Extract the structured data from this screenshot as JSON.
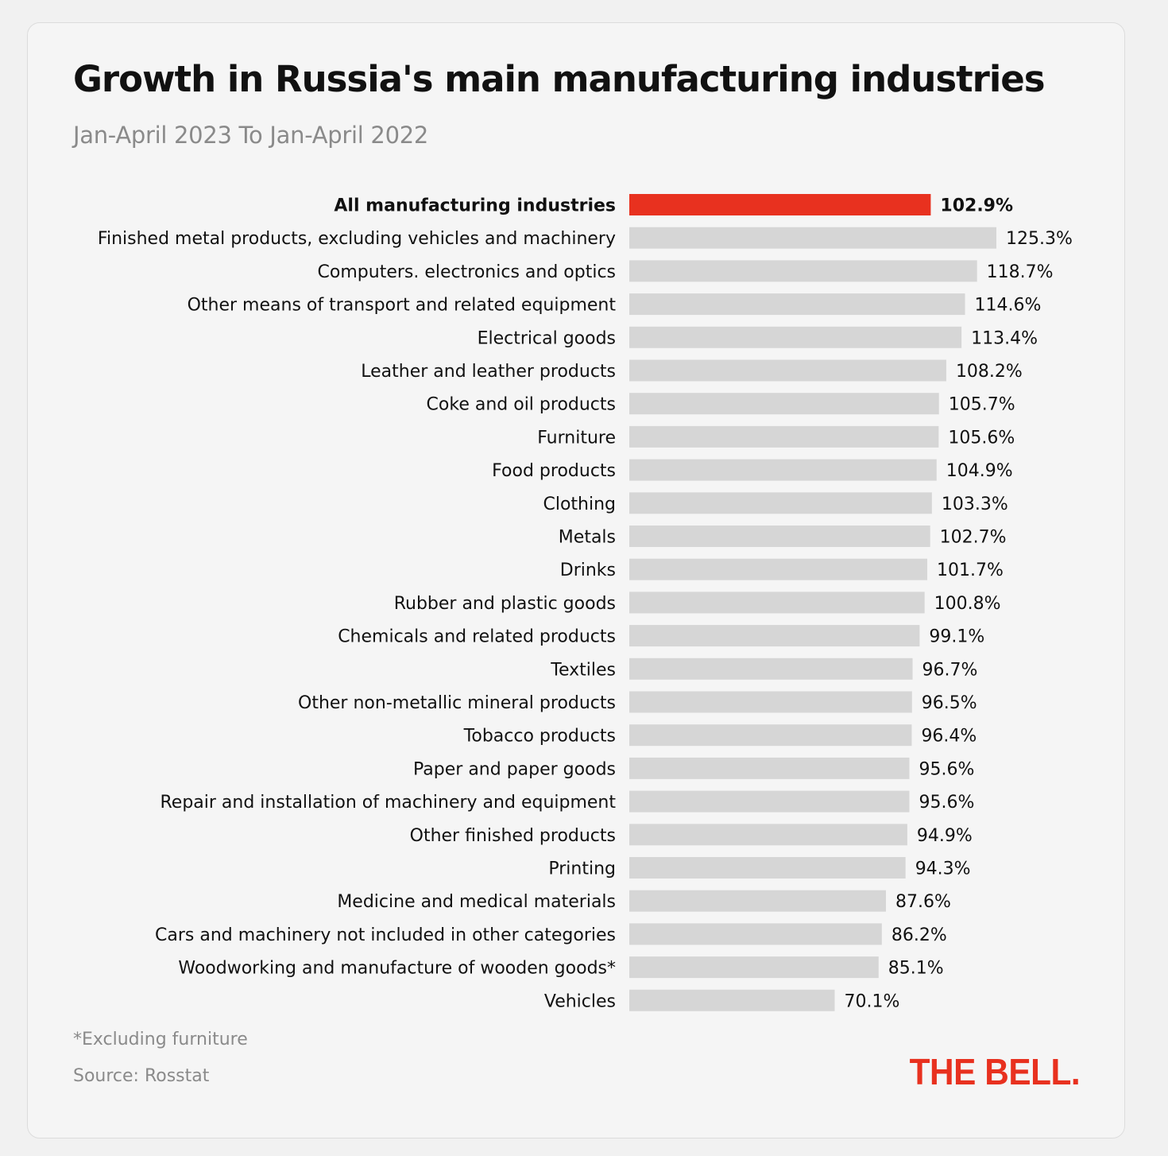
{
  "colors": {
    "highlight": "#e8311f",
    "bar": "#d6d6d6",
    "label": "#111111"
  },
  "chart_data": {
    "type": "bar",
    "orientation": "horizontal",
    "title": "Growth in Russia's main manufacturing industries",
    "subtitle": "Jan-April 2023 To Jan-April 2022",
    "unit": "%",
    "highlight_index": 0,
    "categories": [
      "All manufacturing industries",
      "Finished metal products, excluding vehicles and machinery",
      "Computers. electronics and optics",
      "Other means of transport and related equipment",
      "Electrical goods",
      "Leather and leather products",
      "Coke and oil products",
      "Furniture",
      "Food products",
      "Clothing",
      "Metals",
      "Drinks",
      "Rubber and plastic goods",
      "Chemicals and related products",
      "Textiles",
      "Other non-metallic mineral products",
      "Tobacco products",
      "Paper and paper goods",
      "Repair and installation of machinery and equipment",
      "Other finished products",
      "Printing",
      "Medicine and medical materials",
      "Cars and machinery not included in other categories",
      "Woodworking and manufacture of wooden goods*",
      "Vehicles"
    ],
    "values": [
      102.9,
      125.3,
      118.7,
      114.6,
      113.4,
      108.2,
      105.7,
      105.6,
      104.9,
      103.3,
      102.7,
      101.7,
      100.8,
      99.1,
      96.7,
      96.5,
      96.4,
      95.6,
      95.6,
      94.9,
      94.3,
      87.6,
      86.2,
      85.1,
      70.1
    ],
    "value_labels": [
      "102.9%",
      "125.3%",
      "118.7%",
      "114.6%",
      "113.4%",
      "108.2%",
      "105.7%",
      "105.6%",
      "104.9%",
      "103.3%",
      "102.7%",
      "101.7%",
      "100.8%",
      "99.1%",
      "96.7%",
      "96.5%",
      "96.4%",
      "95.6%",
      "95.6%",
      "94.9%",
      "94.3%",
      "87.6%",
      "86.2%",
      "85.1%",
      "70.1%"
    ],
    "xlim": [
      0,
      125.3
    ],
    "grid": false,
    "legend": "none"
  },
  "footnote": "*Excluding furniture",
  "source": "Source: Rosstat",
  "logo": "THE BELL."
}
